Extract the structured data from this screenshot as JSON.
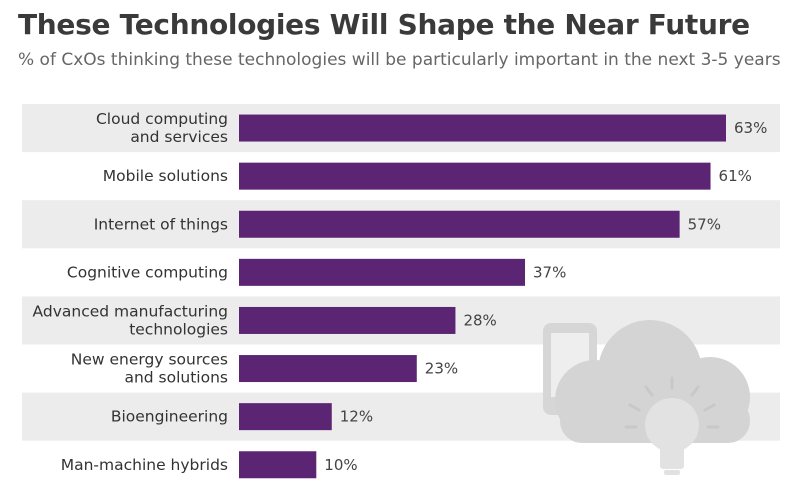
{
  "header": {
    "title": "These Technologies Will Shape the Near Future",
    "subtitle": "% of CxOs thinking these technologies will be particularly important in the next 3-5 years"
  },
  "colors": {
    "bar": "#5b2574",
    "band": "#ececec",
    "background": "#ffffff",
    "illustration": "#d8d8d8"
  },
  "illustration": {
    "icons": [
      "smartphone-icon",
      "cloud-icon",
      "lightbulb-icon"
    ]
  },
  "chart_data": {
    "type": "bar",
    "orientation": "horizontal",
    "title": "These Technologies Will Shape the Near Future",
    "subtitle": "% of CxOs thinking these technologies will be particularly important in the next 3-5 years",
    "categories": [
      "Cloud computing and services",
      "Mobile solutions",
      "Internet of things",
      "Cognitive computing",
      "Advanced manufacturing technologies",
      "New energy sources and solutions",
      "Bioengineering",
      "Man-machine hybrids"
    ],
    "category_lines": [
      [
        "Cloud computing",
        "and services"
      ],
      [
        "Mobile solutions"
      ],
      [
        "Internet of things"
      ],
      [
        "Cognitive computing"
      ],
      [
        "Advanced manufacturing",
        "technologies"
      ],
      [
        "New energy sources",
        "and solutions"
      ],
      [
        "Bioengineering"
      ],
      [
        "Man-machine hybrids"
      ]
    ],
    "values": [
      63,
      61,
      57,
      37,
      28,
      23,
      12,
      10
    ],
    "value_labels": [
      "63%",
      "61%",
      "57%",
      "37%",
      "28%",
      "23%",
      "12%",
      "10%"
    ],
    "unit": "%",
    "xlim": [
      0,
      63
    ],
    "grid": false,
    "legend": "none"
  }
}
